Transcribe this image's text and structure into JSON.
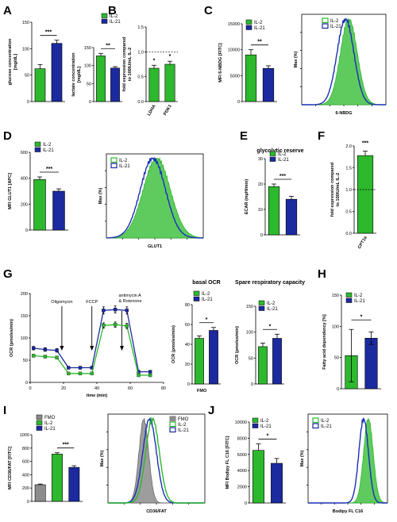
{
  "colors": {
    "il2": "#2db82d",
    "il21": "#1b2a9e",
    "fmo": "#8c8c8c",
    "il2_fill": "#43c243",
    "il21_line": "#1a2fb4"
  },
  "legend": {
    "il2": "IL-2",
    "il21": "IL-21",
    "fmo": "FMO"
  },
  "chart_data": [
    {
      "panel": "A",
      "type": "bar",
      "ylabel": "glucose concentration [mg/dL]",
      "ylim": [
        0,
        150
      ],
      "yticks": [
        "0",
        "50",
        "100",
        "150"
      ],
      "categories": [
        "IL-2",
        "IL-21"
      ],
      "values": [
        62,
        110
      ],
      "errors": [
        8,
        6
      ],
      "significance": "***",
      "legend": false
    },
    {
      "panel": "A",
      "type": "bar",
      "ylabel": "lactate concentration [mg/dL]",
      "ylim": [
        0,
        150
      ],
      "yticks": [
        "0",
        "50",
        "100",
        "150"
      ],
      "categories": [
        "IL-2",
        "IL-21"
      ],
      "values": [
        127,
        93
      ],
      "errors": [
        7,
        4
      ],
      "significance": "**",
      "legend": true
    },
    {
      "panel": "B",
      "type": "bar",
      "ylabel": "fold expression compared to 100IU/mL IL-2",
      "ylim": [
        0,
        1.5
      ],
      "yticks": [
        "0.0",
        "0.5",
        "1.0",
        "1.5"
      ],
      "categories": [
        "LDHA",
        "PDK1"
      ],
      "values": [
        0.67,
        0.75
      ],
      "errors": [
        0.06,
        0.06
      ],
      "significance": [
        "*",
        "*"
      ],
      "refline": 1.0
    },
    {
      "panel": "C",
      "type": "bar",
      "ylabel": "MFI 6-NBDG [FITC]",
      "ylim": [
        0,
        15000
      ],
      "yticks": [
        "0",
        "5000",
        "10000",
        "15000"
      ],
      "categories": [
        "IL-2",
        "IL-21"
      ],
      "values": [
        9000,
        6400
      ],
      "errors": [
        1000,
        500
      ],
      "significance": "**",
      "legend": true
    },
    {
      "panel": "C",
      "type": "histogram",
      "xlabel": "6-NBDG",
      "ylabel": "Max (%)",
      "series": [
        "IL-2",
        "IL-21"
      ]
    },
    {
      "panel": "D",
      "type": "bar",
      "ylabel": "MFI GLUT1 [APC]",
      "ylim": [
        0,
        600
      ],
      "yticks": [
        "0",
        "200",
        "400",
        "600"
      ],
      "categories": [
        "IL-2",
        "IL-21"
      ],
      "values": [
        390,
        300
      ],
      "errors": [
        20,
        18
      ],
      "significance": "***",
      "legend": true
    },
    {
      "panel": "D",
      "type": "histogram",
      "xlabel": "GLUT1",
      "ylabel": "Max (%)",
      "series": [
        "IL-2",
        "IL-21"
      ]
    },
    {
      "panel": "E",
      "type": "bar",
      "title": "glycolytic reserve",
      "ylabel": "ECAR (mpH/min)",
      "ylim": [
        0,
        30
      ],
      "yticks": [
        "0",
        "10",
        "20",
        "30"
      ],
      "categories": [
        "IL-2",
        "IL-21"
      ],
      "values": [
        19,
        14
      ],
      "errors": [
        1,
        1.2
      ],
      "significance": "***",
      "legend": true
    },
    {
      "panel": "F",
      "type": "bar",
      "ylabel": "fold expression compared to 100IU/mL IL-2",
      "ylim": [
        0,
        2.0
      ],
      "yticks": [
        "0.0",
        "0.5",
        "1.0",
        "1.5",
        "2.0"
      ],
      "categories": [
        "CPT1a"
      ],
      "values": [
        1.78
      ],
      "errors": [
        0.1
      ],
      "significance": "***",
      "refline": 1.0
    },
    {
      "panel": "G",
      "type": "line",
      "xlabel": "time (min)",
      "ylabel": "OCR (pmoles/min)",
      "xlim": [
        0,
        80
      ],
      "ylim": [
        0,
        200
      ],
      "xticks": [
        "0",
        "20",
        "40",
        "60",
        "80"
      ],
      "yticks": [
        "0",
        "50",
        "100",
        "150",
        "200"
      ],
      "injections": [
        {
          "label": "Oligomycin",
          "x": 19
        },
        {
          "label": "FCCP",
          "x": 37
        },
        {
          "label": "antimycin A & Rotenone",
          "x": 55
        }
      ],
      "x": [
        2,
        9,
        16,
        23,
        30,
        37,
        44,
        51,
        58,
        65,
        72
      ],
      "series": [
        {
          "name": "IL-21",
          "values": [
            77,
            74,
            72,
            33,
            33,
            33,
            162,
            164,
            162,
            24,
            24
          ],
          "errors": [
            4,
            4,
            4,
            3,
            3,
            3,
            8,
            8,
            8,
            2,
            2
          ]
        },
        {
          "name": "IL-2",
          "values": [
            60,
            58,
            56,
            20,
            20,
            20,
            128,
            130,
            127,
            16,
            16
          ],
          "errors": [
            3,
            3,
            3,
            2,
            2,
            2,
            6,
            6,
            6,
            2,
            2
          ]
        }
      ]
    },
    {
      "panel": "G",
      "type": "bar",
      "title": "basal OCR",
      "ylabel": "OCR (pmoles/min)",
      "ylim": [
        0,
        80
      ],
      "yticks": [
        "0",
        "20",
        "40",
        "60",
        "80"
      ],
      "categories": [
        "IL-2",
        "IL-21"
      ],
      "values": [
        46,
        54
      ],
      "errors": [
        2.5,
        3
      ],
      "significance": "*",
      "legend": true
    },
    {
      "panel": "G",
      "type": "bar",
      "title": "Spare respiratory capacity",
      "ylabel": "OCR (pmoles/min)",
      "ylim": [
        0,
        150
      ],
      "yticks": [
        "0",
        "50",
        "100",
        "150"
      ],
      "categories": [
        "IL-2",
        "IL-21"
      ],
      "values": [
        72,
        88
      ],
      "errors": [
        7,
        8
      ],
      "significance": "*",
      "legend": true
    },
    {
      "panel": "H",
      "type": "bar",
      "ylabel": "Fatty acid dependency [%]",
      "ylim": [
        0,
        150
      ],
      "yticks": [
        "0",
        "50",
        "100",
        "150"
      ],
      "categories": [
        "IL-2",
        "IL-21"
      ],
      "values": [
        53,
        81
      ],
      "errors": [
        42,
        10
      ],
      "significance": "*",
      "legend": true
    },
    {
      "panel": "I",
      "type": "bar",
      "ylabel": "MFI CD36/FAT [FITC]",
      "ylim": [
        0,
        1000
      ],
      "yticks": [
        "0",
        "200",
        "400",
        "600",
        "800",
        "1000"
      ],
      "categories": [
        "FMO",
        "IL-2",
        "IL-21"
      ],
      "values": [
        250,
        710,
        510
      ],
      "errors": [
        10,
        20,
        25
      ],
      "significance": "***",
      "legend": true
    },
    {
      "panel": "I",
      "type": "histogram",
      "xlabel": "CD36/FAT",
      "ylabel": "Max (%)",
      "series": [
        "FMO",
        "IL-2",
        "IL-21"
      ]
    },
    {
      "panel": "J",
      "type": "bar",
      "ylabel": "MFI Bodipy FL C16 [FITC]",
      "ylim": [
        0,
        10000
      ],
      "yticks": [
        "0",
        "2000",
        "4000",
        "6000",
        "8000",
        "10000"
      ],
      "categories": [
        "IL-2",
        "IL-21"
      ],
      "values": [
        6500,
        4900
      ],
      "errors": [
        800,
        600
      ],
      "significance": "*",
      "legend": true
    },
    {
      "panel": "J",
      "type": "histogram",
      "xlabel": "Bodipy FL C16",
      "ylabel": "Max (%)",
      "series": [
        "IL-2",
        "IL-21"
      ]
    }
  ]
}
